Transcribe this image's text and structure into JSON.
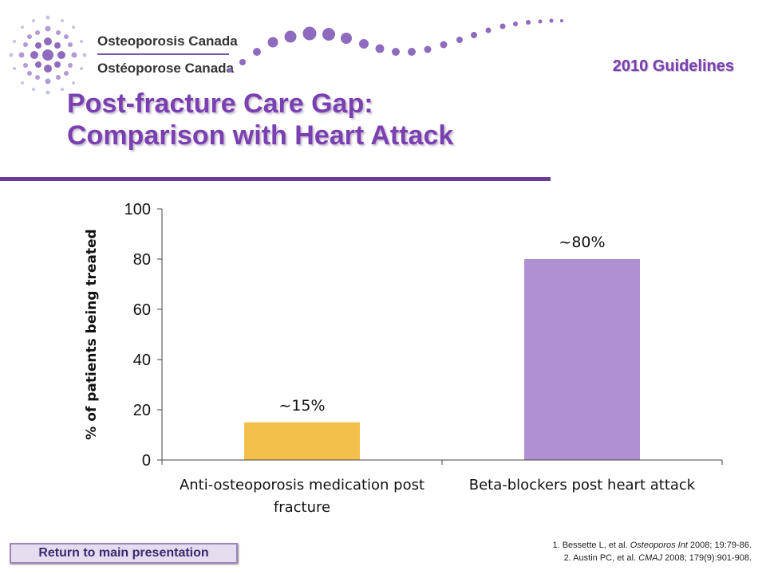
{
  "header": {
    "org_name_en": "Osteoporosis Canada",
    "org_name_fr": "Ostéoporose Canada",
    "guidelines_label": "2010 Guidelines"
  },
  "slide": {
    "title_line1": "Post-fracture Care Gap:",
    "title_line2": "Comparison with Heart Attack"
  },
  "footer": {
    "return_button_label": "Return to main presentation",
    "ref1_a": "1. Bessette L, et al. ",
    "ref1_journal": "Osteoporos Int",
    "ref1_b": " 2008; 19:79-86.",
    "ref2_a": "2. Austin PC, et al. ",
    "ref2_journal": "CMAJ",
    "ref2_b": " 2008; 179(9):901-908."
  },
  "colors": {
    "purple": "#7a3fb0",
    "bar_fracture": "#f2c04b",
    "bar_heart": "#b190d2"
  },
  "chart_data": {
    "type": "bar",
    "categories": [
      "Anti-osteoporosis medication post fracture",
      "Beta-blockers post heart attack"
    ],
    "category_lines": [
      [
        "Anti-osteoporosis medication post",
        "fracture"
      ],
      [
        "Beta-blockers post heart attack"
      ]
    ],
    "values": [
      15,
      80
    ],
    "data_labels": [
      "~15%",
      "~80%"
    ],
    "ylabel": "% of patients being treated",
    "ylim": [
      0,
      100
    ],
    "yticks": [
      0,
      20,
      40,
      60,
      80,
      100
    ],
    "grid": false,
    "legend": "none"
  }
}
